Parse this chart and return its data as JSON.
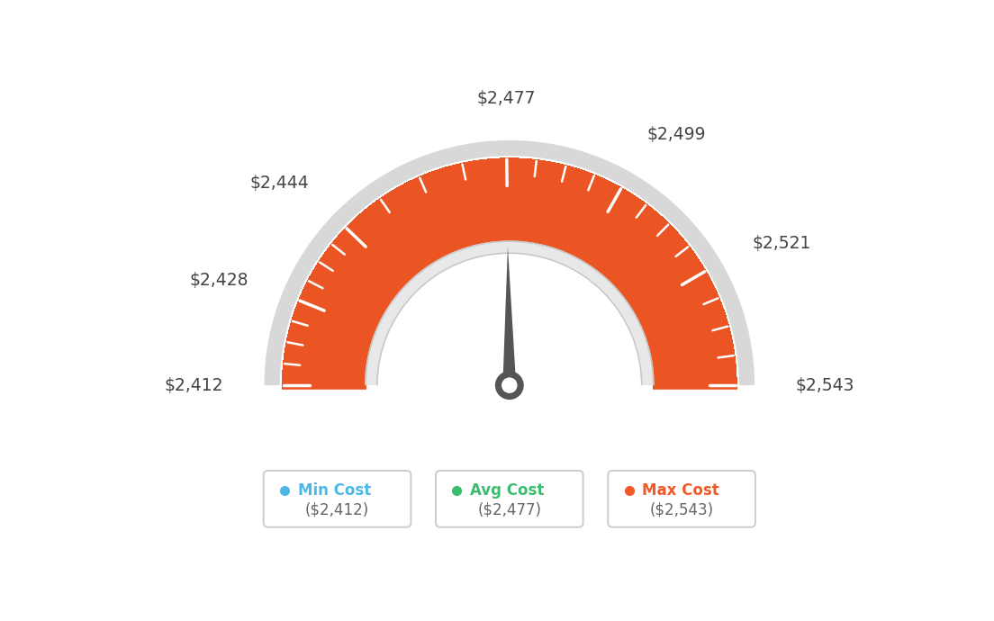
{
  "min_value": 2412,
  "max_value": 2543,
  "avg_value": 2477,
  "needle_value": 2477,
  "tick_labels": [
    "$2,412",
    "$2,428",
    "$2,444",
    "$2,477",
    "$2,499",
    "$2,521",
    "$2,543"
  ],
  "tick_values": [
    2412,
    2428,
    2444,
    2477,
    2499,
    2521,
    2543
  ],
  "legend_items": [
    {
      "label": "Min Cost",
      "value": "($2,412)",
      "color": "#4db8e8"
    },
    {
      "label": "Avg Cost",
      "value": "($2,477)",
      "color": "#3dbb6e"
    },
    {
      "label": "Max Cost",
      "value": "($2,543)",
      "color": "#f05a28"
    }
  ],
  "background_color": "#ffffff",
  "outer_r": 0.95,
  "inner_r": 0.6,
  "color_stops": [
    [
      0.0,
      [
        91,
        192,
        242
      ]
    ],
    [
      0.25,
      [
        70,
        185,
        190
      ]
    ],
    [
      0.45,
      [
        61,
        185,
        125
      ]
    ],
    [
      0.55,
      [
        61,
        185,
        100
      ]
    ],
    [
      0.7,
      [
        200,
        150,
        60
      ]
    ],
    [
      0.85,
      [
        230,
        100,
        50
      ]
    ],
    [
      1.0,
      [
        235,
        85,
        35
      ]
    ]
  ],
  "label_info": {
    "2412": {
      "r_extra": 0.17,
      "ha": "right",
      "va": "center"
    },
    "2428": {
      "r_extra": 0.15,
      "ha": "right",
      "va": "center"
    },
    "2444": {
      "r_extra": 0.14,
      "ha": "right",
      "va": "bottom"
    },
    "2477": {
      "r_extra": 0.14,
      "ha": "center",
      "va": "bottom"
    },
    "2499": {
      "r_extra": 0.14,
      "ha": "left",
      "va": "bottom"
    },
    "2521": {
      "r_extra": 0.15,
      "ha": "left",
      "va": "center"
    },
    "2543": {
      "r_extra": 0.17,
      "ha": "left",
      "va": "center"
    }
  }
}
